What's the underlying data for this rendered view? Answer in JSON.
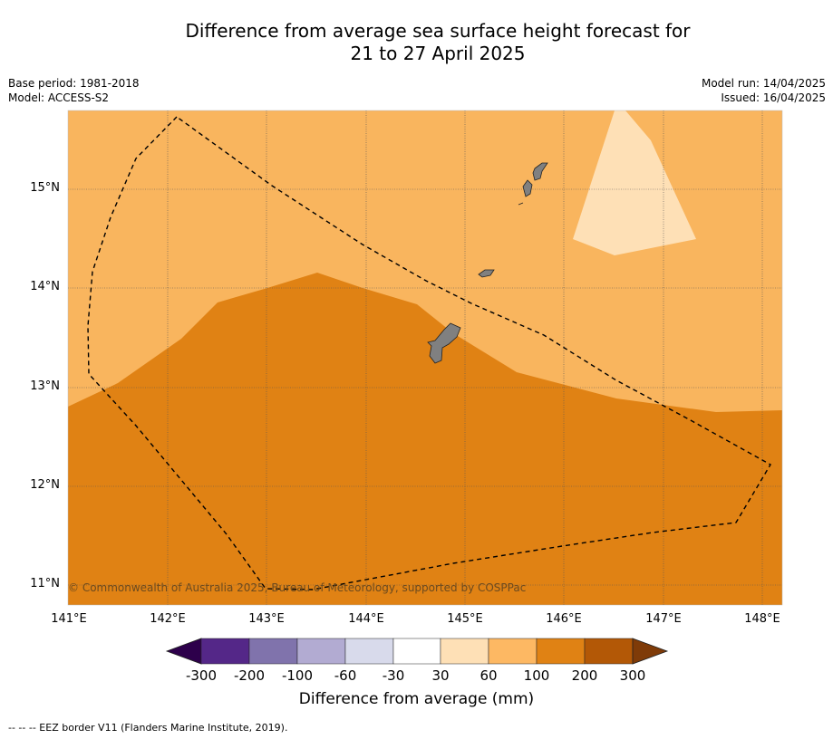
{
  "title": {
    "line1": "Difference from average sea surface height forecast for",
    "line2": "21 to 27 April 2025"
  },
  "meta": {
    "base_period": "Base period: 1981-2018",
    "model": "Model: ACCESS-S2",
    "model_run": "Model run: 14/04/2025",
    "issued": "Issued: 16/04/2025"
  },
  "map": {
    "lon_range": [
      141.0,
      148.2
    ],
    "lat_range": [
      10.8,
      15.8
    ],
    "lat_ticks": [
      15,
      14,
      13,
      12,
      11
    ],
    "lat_labels": [
      "15°N",
      "14°N",
      "13°N",
      "12°N",
      "11°N"
    ],
    "lon_ticks": [
      141,
      142,
      143,
      144,
      145,
      146,
      147,
      148
    ],
    "lon_labels": [
      "141°E",
      "142°E",
      "143°E",
      "144°E",
      "145°E",
      "146°E",
      "147°E",
      "148°E"
    ],
    "gridlines": true,
    "colors": {
      "band_60_100": "#f9b55e",
      "band_100_200": "#e08214",
      "band_30_60": "#fee0b6",
      "land": "#808080",
      "eez": "#000000"
    },
    "copyright": "© Commonwealth of Australia 2025, Bureau of Meteorology, supported by COSPPac"
  },
  "colorbar": {
    "colors": [
      "#2d004b",
      "#542788",
      "#8073ac",
      "#b2abd2",
      "#d8daeb",
      "#ffffff",
      "#fee0b6",
      "#fdb863",
      "#e08214",
      "#b35806",
      "#7f3b08"
    ],
    "ticks": [
      "-300",
      "-200",
      "-100",
      "-60",
      "-30",
      "30",
      "60",
      "100",
      "200",
      "300"
    ],
    "label": "Difference from average (mm)"
  },
  "footnote": "--  --  -- EEZ border V11 (Flanders Marine Institute, 2019)."
}
